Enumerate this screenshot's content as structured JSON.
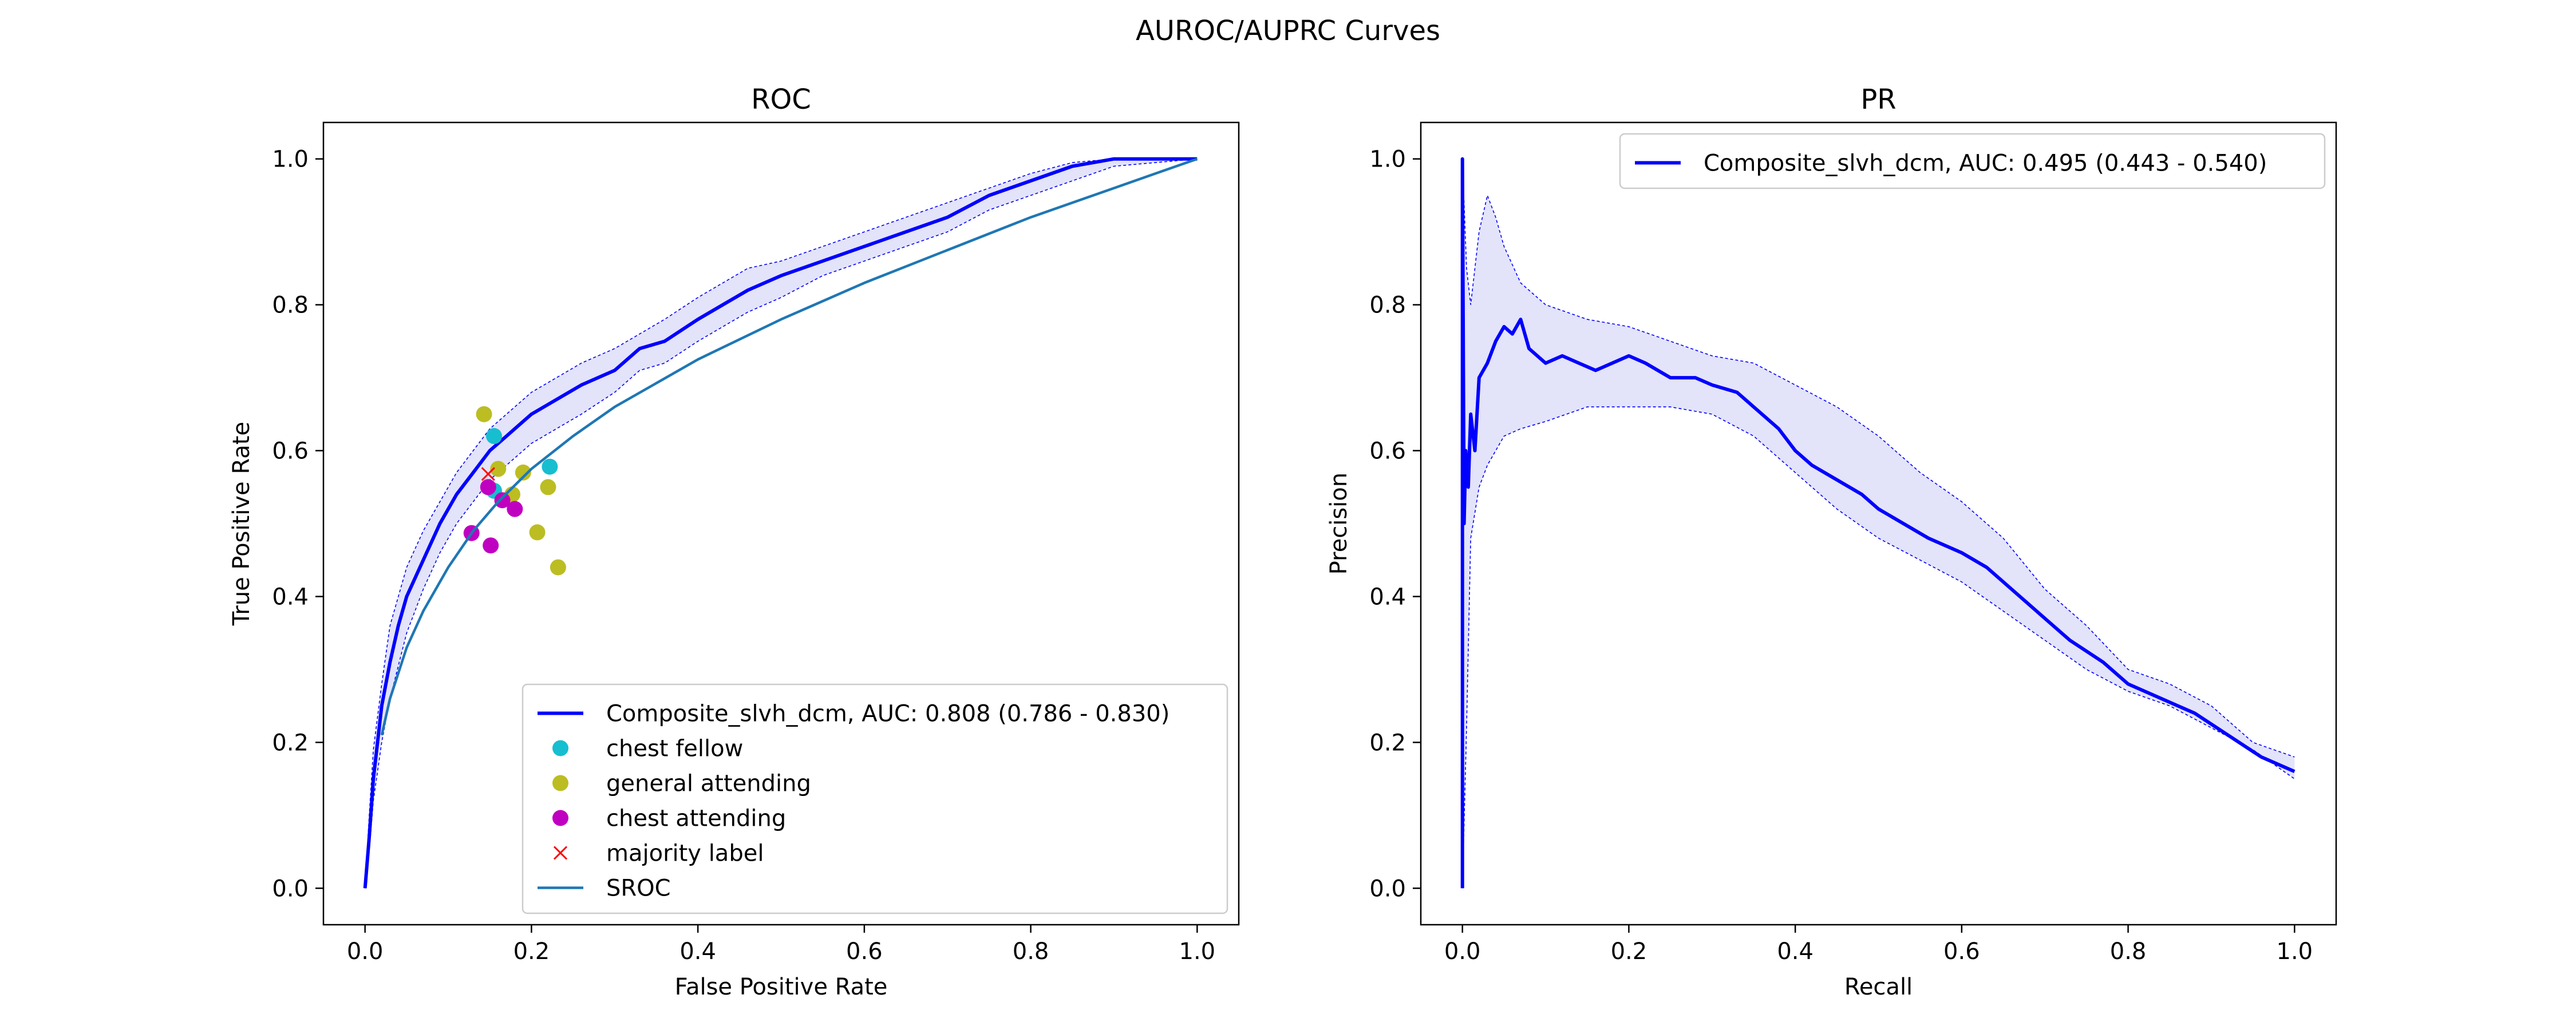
{
  "suptitle": "AUROC/AUPRC Curves",
  "colors": {
    "curve": "#0000ff",
    "band": "#e3e3fa",
    "sroc": "#1f77b4",
    "chest_fellow": "#17becf",
    "general_attending": "#bcbd22",
    "chest_attending": "#c000c0",
    "majority": "#ff0000"
  },
  "chart_data": [
    {
      "id": "roc",
      "type": "line",
      "title": "ROC",
      "xlabel": "False Positive Rate",
      "ylabel": "True Positive Rate",
      "xlim": [
        -0.05,
        1.05
      ],
      "ylim": [
        -0.05,
        1.05
      ],
      "xticks": [
        "0.0",
        "0.2",
        "0.4",
        "0.6",
        "0.8",
        "1.0"
      ],
      "yticks": [
        "0.0",
        "0.2",
        "0.4",
        "0.6",
        "0.8",
        "1.0"
      ],
      "grid": false,
      "legend_position": "lower-right",
      "series": [
        {
          "name": "Composite_slvh_dcm, AUC: 0.808 (0.786 - 0.830)",
          "kind": "line",
          "points": [
            [
              0.0,
              0.0
            ],
            [
              0.005,
              0.07
            ],
            [
              0.01,
              0.15
            ],
            [
              0.015,
              0.2
            ],
            [
              0.02,
              0.25
            ],
            [
              0.03,
              0.31
            ],
            [
              0.04,
              0.36
            ],
            [
              0.05,
              0.4
            ],
            [
              0.07,
              0.45
            ],
            [
              0.09,
              0.5
            ],
            [
              0.11,
              0.54
            ],
            [
              0.13,
              0.57
            ],
            [
              0.15,
              0.6
            ],
            [
              0.17,
              0.62
            ],
            [
              0.2,
              0.65
            ],
            [
              0.23,
              0.67
            ],
            [
              0.26,
              0.69
            ],
            [
              0.3,
              0.71
            ],
            [
              0.33,
              0.74
            ],
            [
              0.36,
              0.75
            ],
            [
              0.4,
              0.78
            ],
            [
              0.43,
              0.8
            ],
            [
              0.46,
              0.82
            ],
            [
              0.5,
              0.84
            ],
            [
              0.55,
              0.86
            ],
            [
              0.6,
              0.88
            ],
            [
              0.65,
              0.9
            ],
            [
              0.7,
              0.92
            ],
            [
              0.75,
              0.95
            ],
            [
              0.8,
              0.97
            ],
            [
              0.85,
              0.99
            ],
            [
              0.9,
              1.0
            ],
            [
              1.0,
              1.0
            ]
          ],
          "upper": [
            [
              0.0,
              0.0
            ],
            [
              0.005,
              0.1
            ],
            [
              0.01,
              0.19
            ],
            [
              0.02,
              0.28
            ],
            [
              0.03,
              0.36
            ],
            [
              0.05,
              0.44
            ],
            [
              0.07,
              0.49
            ],
            [
              0.09,
              0.53
            ],
            [
              0.11,
              0.57
            ],
            [
              0.13,
              0.6
            ],
            [
              0.15,
              0.63
            ],
            [
              0.17,
              0.65
            ],
            [
              0.2,
              0.68
            ],
            [
              0.23,
              0.7
            ],
            [
              0.26,
              0.72
            ],
            [
              0.3,
              0.74
            ],
            [
              0.33,
              0.76
            ],
            [
              0.36,
              0.78
            ],
            [
              0.4,
              0.81
            ],
            [
              0.43,
              0.83
            ],
            [
              0.46,
              0.85
            ],
            [
              0.5,
              0.86
            ],
            [
              0.55,
              0.88
            ],
            [
              0.6,
              0.9
            ],
            [
              0.65,
              0.92
            ],
            [
              0.7,
              0.94
            ],
            [
              0.75,
              0.96
            ],
            [
              0.8,
              0.98
            ],
            [
              0.85,
              0.995
            ],
            [
              0.9,
              1.0
            ],
            [
              1.0,
              1.0
            ]
          ],
          "lower": [
            [
              0.0,
              0.0
            ],
            [
              0.005,
              0.05
            ],
            [
              0.01,
              0.12
            ],
            [
              0.02,
              0.2
            ],
            [
              0.03,
              0.26
            ],
            [
              0.05,
              0.35
            ],
            [
              0.07,
              0.41
            ],
            [
              0.09,
              0.46
            ],
            [
              0.11,
              0.5
            ],
            [
              0.13,
              0.53
            ],
            [
              0.15,
              0.56
            ],
            [
              0.17,
              0.58
            ],
            [
              0.2,
              0.61
            ],
            [
              0.23,
              0.63
            ],
            [
              0.26,
              0.65
            ],
            [
              0.3,
              0.68
            ],
            [
              0.33,
              0.71
            ],
            [
              0.36,
              0.72
            ],
            [
              0.4,
              0.75
            ],
            [
              0.43,
              0.77
            ],
            [
              0.46,
              0.79
            ],
            [
              0.5,
              0.81
            ],
            [
              0.55,
              0.84
            ],
            [
              0.6,
              0.86
            ],
            [
              0.65,
              0.88
            ],
            [
              0.7,
              0.9
            ],
            [
              0.75,
              0.93
            ],
            [
              0.8,
              0.95
            ],
            [
              0.85,
              0.97
            ],
            [
              0.9,
              0.99
            ],
            [
              1.0,
              1.0
            ]
          ]
        },
        {
          "name": "chest fellow",
          "kind": "scatter",
          "marker": "circle",
          "points": [
            [
              0.155,
              0.62
            ],
            [
              0.155,
              0.545
            ],
            [
              0.222,
              0.578
            ]
          ]
        },
        {
          "name": "general attending",
          "kind": "scatter",
          "marker": "circle",
          "points": [
            [
              0.143,
              0.65
            ],
            [
              0.16,
              0.575
            ],
            [
              0.19,
              0.57
            ],
            [
              0.177,
              0.54
            ],
            [
              0.22,
              0.55
            ],
            [
              0.207,
              0.488
            ],
            [
              0.232,
              0.44
            ]
          ]
        },
        {
          "name": "chest attending",
          "kind": "scatter",
          "marker": "circle",
          "points": [
            [
              0.148,
              0.55
            ],
            [
              0.165,
              0.532
            ],
            [
              0.18,
              0.52
            ],
            [
              0.128,
              0.487
            ],
            [
              0.151,
              0.47
            ]
          ]
        },
        {
          "name": "majority label",
          "kind": "scatter",
          "marker": "x",
          "points": [
            [
              0.148,
              0.568
            ]
          ]
        },
        {
          "name": "SROC",
          "kind": "line",
          "points": [
            [
              0.02,
              0.21
            ],
            [
              0.03,
              0.26
            ],
            [
              0.05,
              0.33
            ],
            [
              0.07,
              0.38
            ],
            [
              0.1,
              0.44
            ],
            [
              0.13,
              0.49
            ],
            [
              0.16,
              0.53
            ],
            [
              0.2,
              0.575
            ],
            [
              0.25,
              0.62
            ],
            [
              0.3,
              0.66
            ],
            [
              0.4,
              0.725
            ],
            [
              0.5,
              0.78
            ],
            [
              0.6,
              0.83
            ],
            [
              0.7,
              0.875
            ],
            [
              0.8,
              0.92
            ],
            [
              0.9,
              0.96
            ],
            [
              1.0,
              1.0
            ]
          ]
        }
      ]
    },
    {
      "id": "pr",
      "type": "line",
      "title": "PR",
      "xlabel": "Recall",
      "ylabel": "Precision",
      "xlim": [
        -0.05,
        1.05
      ],
      "ylim": [
        -0.05,
        1.05
      ],
      "xticks": [
        "0.0",
        "0.2",
        "0.4",
        "0.6",
        "0.8",
        "1.0"
      ],
      "yticks": [
        "0.0",
        "0.2",
        "0.4",
        "0.6",
        "0.8",
        "1.0"
      ],
      "grid": false,
      "legend_position": "upper-right",
      "series": [
        {
          "name": "Composite_slvh_dcm, AUC: 0.495 (0.443 - 0.540)",
          "kind": "line",
          "points": [
            [
              0.0,
              0.0
            ],
            [
              0.0,
              1.0
            ],
            [
              0.002,
              0.5
            ],
            [
              0.004,
              0.6
            ],
            [
              0.007,
              0.55
            ],
            [
              0.01,
              0.65
            ],
            [
              0.015,
              0.6
            ],
            [
              0.02,
              0.7
            ],
            [
              0.03,
              0.72
            ],
            [
              0.04,
              0.75
            ],
            [
              0.05,
              0.77
            ],
            [
              0.06,
              0.76
            ],
            [
              0.07,
              0.78
            ],
            [
              0.08,
              0.74
            ],
            [
              0.1,
              0.72
            ],
            [
              0.12,
              0.73
            ],
            [
              0.14,
              0.72
            ],
            [
              0.16,
              0.71
            ],
            [
              0.18,
              0.72
            ],
            [
              0.2,
              0.73
            ],
            [
              0.22,
              0.72
            ],
            [
              0.25,
              0.7
            ],
            [
              0.28,
              0.7
            ],
            [
              0.3,
              0.69
            ],
            [
              0.33,
              0.68
            ],
            [
              0.35,
              0.66
            ],
            [
              0.38,
              0.63
            ],
            [
              0.4,
              0.6
            ],
            [
              0.42,
              0.58
            ],
            [
              0.45,
              0.56
            ],
            [
              0.48,
              0.54
            ],
            [
              0.5,
              0.52
            ],
            [
              0.53,
              0.5
            ],
            [
              0.56,
              0.48
            ],
            [
              0.6,
              0.46
            ],
            [
              0.63,
              0.44
            ],
            [
              0.66,
              0.41
            ],
            [
              0.7,
              0.37
            ],
            [
              0.73,
              0.34
            ],
            [
              0.77,
              0.31
            ],
            [
              0.8,
              0.28
            ],
            [
              0.84,
              0.26
            ],
            [
              0.88,
              0.24
            ],
            [
              0.92,
              0.21
            ],
            [
              0.96,
              0.18
            ],
            [
              1.0,
              0.16
            ]
          ],
          "upper": [
            [
              0.0,
              1.0
            ],
            [
              0.005,
              0.85
            ],
            [
              0.01,
              0.8
            ],
            [
              0.02,
              0.9
            ],
            [
              0.03,
              0.95
            ],
            [
              0.04,
              0.92
            ],
            [
              0.05,
              0.88
            ],
            [
              0.07,
              0.83
            ],
            [
              0.1,
              0.8
            ],
            [
              0.15,
              0.78
            ],
            [
              0.2,
              0.77
            ],
            [
              0.25,
              0.75
            ],
            [
              0.3,
              0.73
            ],
            [
              0.35,
              0.72
            ],
            [
              0.4,
              0.69
            ],
            [
              0.45,
              0.66
            ],
            [
              0.5,
              0.62
            ],
            [
              0.55,
              0.57
            ],
            [
              0.6,
              0.53
            ],
            [
              0.65,
              0.48
            ],
            [
              0.7,
              0.41
            ],
            [
              0.75,
              0.36
            ],
            [
              0.8,
              0.3
            ],
            [
              0.85,
              0.28
            ],
            [
              0.9,
              0.25
            ],
            [
              0.95,
              0.2
            ],
            [
              1.0,
              0.18
            ]
          ],
          "lower": [
            [
              0.0,
              0.0
            ],
            [
              0.005,
              0.22
            ],
            [
              0.01,
              0.48
            ],
            [
              0.02,
              0.55
            ],
            [
              0.03,
              0.58
            ],
            [
              0.05,
              0.62
            ],
            [
              0.07,
              0.63
            ],
            [
              0.1,
              0.64
            ],
            [
              0.15,
              0.66
            ],
            [
              0.2,
              0.66
            ],
            [
              0.25,
              0.66
            ],
            [
              0.3,
              0.65
            ],
            [
              0.35,
              0.62
            ],
            [
              0.4,
              0.57
            ],
            [
              0.45,
              0.52
            ],
            [
              0.5,
              0.48
            ],
            [
              0.55,
              0.45
            ],
            [
              0.6,
              0.42
            ],
            [
              0.65,
              0.38
            ],
            [
              0.7,
              0.34
            ],
            [
              0.75,
              0.3
            ],
            [
              0.8,
              0.27
            ],
            [
              0.85,
              0.25
            ],
            [
              0.9,
              0.22
            ],
            [
              0.95,
              0.19
            ],
            [
              1.0,
              0.15
            ]
          ]
        }
      ]
    }
  ]
}
